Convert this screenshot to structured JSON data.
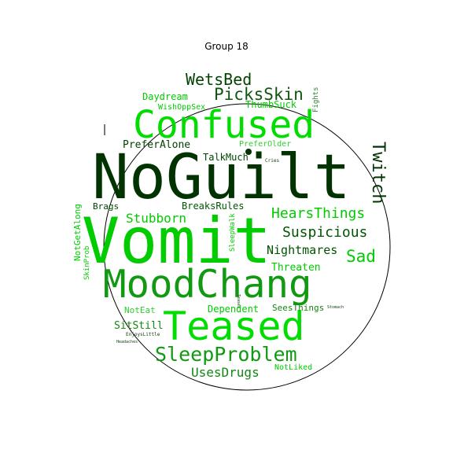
{
  "title": "Group 18",
  "colors": {
    "background": "#ffffff",
    "outline": "#000000",
    "darkest_green": "#003300",
    "dark_green": "#005500",
    "medium_green": "#119911",
    "bright_green": "#00dd00",
    "light_green": "#33cc33"
  },
  "words": [
    {
      "text": "NoGuilt",
      "color": "#003300"
    },
    {
      "text": "Vomit",
      "color": "#00cc00"
    },
    {
      "text": "MoodChang",
      "color": "#119911"
    },
    {
      "text": "Teased",
      "color": "#00dd00"
    },
    {
      "text": "Confused",
      "color": "#00dd00"
    },
    {
      "text": "SleepProblem",
      "color": "#119911"
    },
    {
      "text": "WetsBed",
      "color": "#004400"
    },
    {
      "text": "PicksSkin",
      "color": "#115511"
    },
    {
      "text": "Twitch",
      "color": "#003300"
    },
    {
      "text": "HearsThings",
      "color": "#00cc00"
    },
    {
      "text": "Suspicious",
      "color": "#005500"
    },
    {
      "text": "Sad",
      "color": "#00cc00"
    },
    {
      "text": "Stubborn",
      "color": "#00cc00"
    },
    {
      "text": "UsesDrugs",
      "color": "#118811"
    },
    {
      "text": "Nightmares",
      "color": "#005500"
    },
    {
      "text": "Threaten",
      "color": "#00cc00"
    },
    {
      "text": "Daydream",
      "color": "#00cc00"
    },
    {
      "text": "ThumbSuck",
      "color": "#00cc00"
    },
    {
      "text": "PreferAlone",
      "color": "#004400"
    },
    {
      "text": "TalkMuch",
      "color": "#004400"
    },
    {
      "text": "BreaksRules",
      "color": "#005500"
    },
    {
      "text": "Brags",
      "color": "#004400"
    },
    {
      "text": "Dependent",
      "color": "#00cc00"
    },
    {
      "text": "SitStill",
      "color": "#118811"
    },
    {
      "text": "NotEat",
      "color": "#33cc33"
    },
    {
      "text": "SeesThings",
      "color": "#118811"
    },
    {
      "text": "NotGetAlong",
      "color": "#00cc00"
    },
    {
      "text": "PreferOlder",
      "color": "#33cc33"
    },
    {
      "text": "WishOppSex",
      "color": "#00cc00"
    },
    {
      "text": "NotLiked",
      "color": "#00cc00"
    },
    {
      "text": "SkinProb",
      "color": "#00cc00"
    },
    {
      "text": "SleepWalk",
      "color": "#00cc00"
    },
    {
      "text": "Fights",
      "color": "#338833"
    },
    {
      "text": "Cries",
      "color": "#114411"
    },
    {
      "text": "EnjoysLittle",
      "color": "#114411"
    },
    {
      "text": "Headaches",
      "color": "#114411"
    },
    {
      "text": "Teases",
      "color": "#114411"
    },
    {
      "text": "Stomach",
      "color": "#114411"
    }
  ]
}
